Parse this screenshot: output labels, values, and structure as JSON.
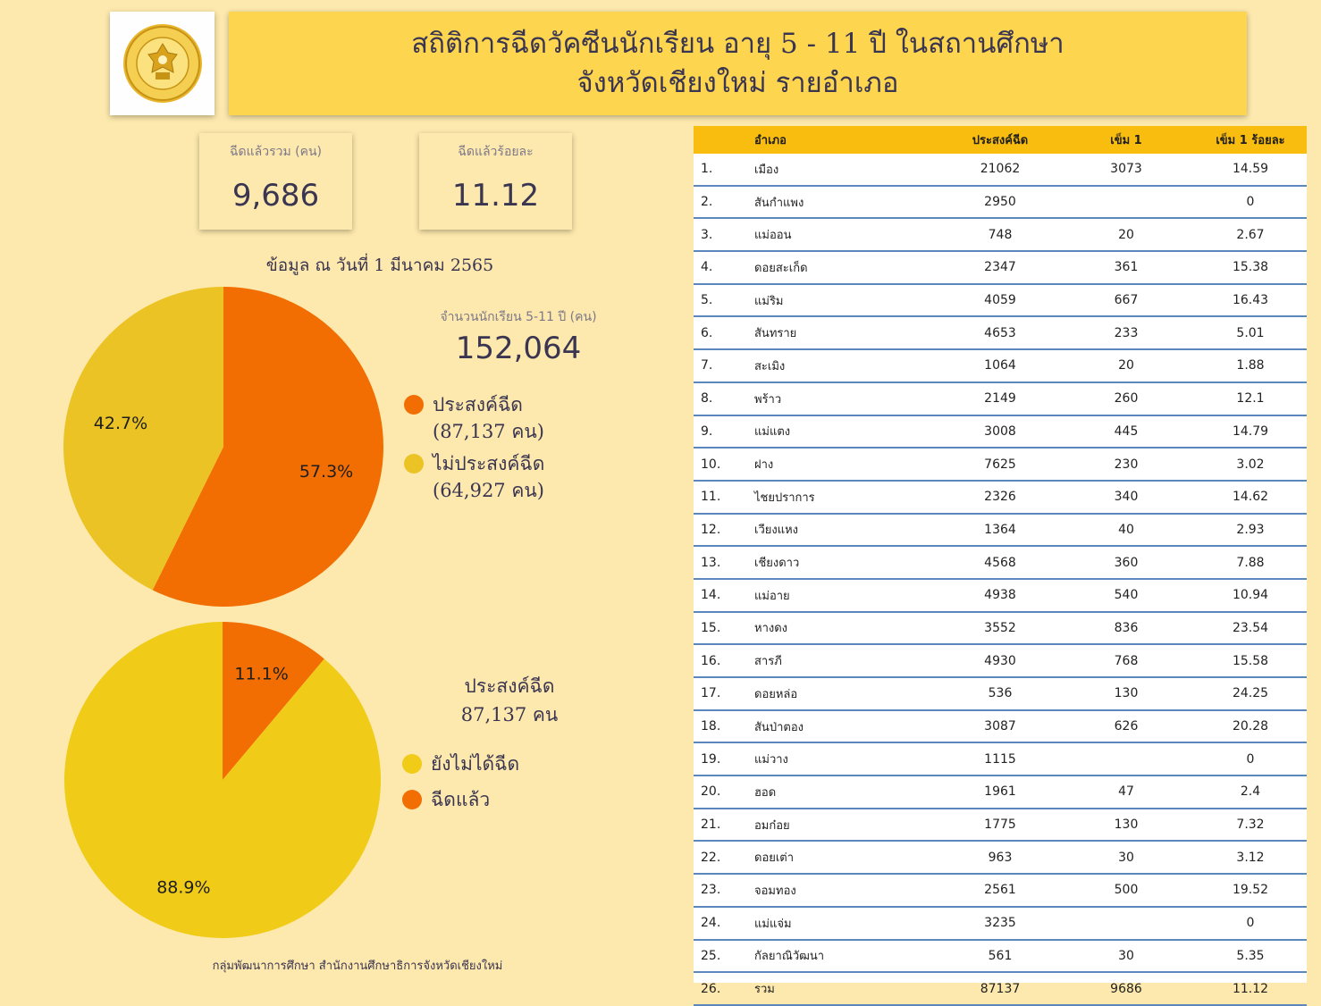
{
  "header": {
    "title_line1": "สถิติการฉีดวัคซีนนักเรียน อายุ 5 - 11 ปี ในสถานศึกษา",
    "title_line2": "จังหวัดเชียงใหม่ รายอำเภอ"
  },
  "kpis": {
    "total_label": "ฉีดแล้วรวม (คน)",
    "total_value": "9,686",
    "percent_label": "ฉีดแล้วร้อยละ",
    "percent_value": "11.12"
  },
  "as_of": "ข้อมูล ณ วันที่ 1 มีนาคม 2565",
  "students": {
    "label": "จำนวนนักเรียน 5-11 ปี (คน)",
    "value": "152,064"
  },
  "colors": {
    "orange": "#f26d02",
    "gold_dark": "#ebc324",
    "gold": "#f0cb17",
    "header_yellow": "#fdd54f",
    "table_header": "#f9bd0f",
    "background": "#fde9ad"
  },
  "legend1": [
    {
      "line1": "ประสงค์ฉีด",
      "line2": "(87,137 คน)",
      "color": "#f26d02"
    },
    {
      "line1": "ไม่ประสงค์ฉีด",
      "line2": "(64,927 คน)",
      "color": "#ebc324"
    }
  ],
  "pie2_head": {
    "line1": "ประสงค์ฉีด",
    "line2": "87,137 คน"
  },
  "legend2": [
    {
      "label": "ยังไม่ได้ฉีด",
      "color": "#f0cb17"
    },
    {
      "label": "ฉีดแล้ว",
      "color": "#f26d02"
    }
  ],
  "footer": "กลุ่มพัฒนาการศึกษา สำนักงานศึกษาธิการจังหวัดเชียงใหม่",
  "chart_data": [
    {
      "type": "pie",
      "title": "",
      "slices": [
        {
          "label": "ประสงค์ฉีด",
          "value": 87137,
          "percent_label": "57.3%",
          "color": "#f26d02"
        },
        {
          "label": "ไม่ประสงค์ฉีด",
          "value": 64927,
          "percent_label": "42.7%",
          "color": "#ebc324"
        }
      ],
      "legend": "right"
    },
    {
      "type": "pie",
      "title": "",
      "slices": [
        {
          "label": "ฉีดแล้ว",
          "value": 9686,
          "percent_label": "11.1%",
          "color": "#f26d02"
        },
        {
          "label": "ยังไม่ได้ฉีด",
          "value": 77451,
          "percent_label": "88.9%",
          "color": "#f0cb17"
        }
      ],
      "legend": "right"
    },
    {
      "type": "table",
      "columns": [
        "",
        "อำเภอ",
        "ประสงค์ฉีด",
        "เข็ม 1",
        "เข็ม 1 ร้อยละ"
      ],
      "rows": [
        [
          "1.",
          "เมือง",
          "21062",
          "3073",
          "14.59"
        ],
        [
          "2.",
          "สันกำแพง",
          "2950",
          "",
          "0"
        ],
        [
          "3.",
          "แม่ออน",
          "748",
          "20",
          "2.67"
        ],
        [
          "4.",
          "ดอยสะเก็ด",
          "2347",
          "361",
          "15.38"
        ],
        [
          "5.",
          "แม่ริม",
          "4059",
          "667",
          "16.43"
        ],
        [
          "6.",
          "สันทราย",
          "4653",
          "233",
          "5.01"
        ],
        [
          "7.",
          "สะเมิง",
          "1064",
          "20",
          "1.88"
        ],
        [
          "8.",
          "พร้าว",
          "2149",
          "260",
          "12.1"
        ],
        [
          "9.",
          "แม่แตง",
          "3008",
          "445",
          "14.79"
        ],
        [
          "10.",
          "ฝาง",
          "7625",
          "230",
          "3.02"
        ],
        [
          "11.",
          "ไชยปราการ",
          "2326",
          "340",
          "14.62"
        ],
        [
          "12.",
          "เวียงแหง",
          "1364",
          "40",
          "2.93"
        ],
        [
          "13.",
          "เชียงดาว",
          "4568",
          "360",
          "7.88"
        ],
        [
          "14.",
          "แม่อาย",
          "4938",
          "540",
          "10.94"
        ],
        [
          "15.",
          "หางดง",
          "3552",
          "836",
          "23.54"
        ],
        [
          "16.",
          "สารภี",
          "4930",
          "768",
          "15.58"
        ],
        [
          "17.",
          "ดอยหล่อ",
          "536",
          "130",
          "24.25"
        ],
        [
          "18.",
          "สันป่าตอง",
          "3087",
          "626",
          "20.28"
        ],
        [
          "19.",
          "แม่วาง",
          "1115",
          "",
          "0"
        ],
        [
          "20.",
          "ฮอด",
          "1961",
          "47",
          "2.4"
        ],
        [
          "21.",
          "อมก๋อย",
          "1775",
          "130",
          "7.32"
        ],
        [
          "22.",
          "ดอยเต่า",
          "963",
          "30",
          "3.12"
        ],
        [
          "23.",
          "จอมทอง",
          "2561",
          "500",
          "19.52"
        ],
        [
          "24.",
          "แม่แจ่ม",
          "3235",
          "",
          "0"
        ],
        [
          "25.",
          "กัลยาณิวัฒนา",
          "561",
          "30",
          "5.35"
        ],
        [
          "26.",
          "รวม",
          "87137",
          "9686",
          "11.12"
        ]
      ]
    }
  ]
}
